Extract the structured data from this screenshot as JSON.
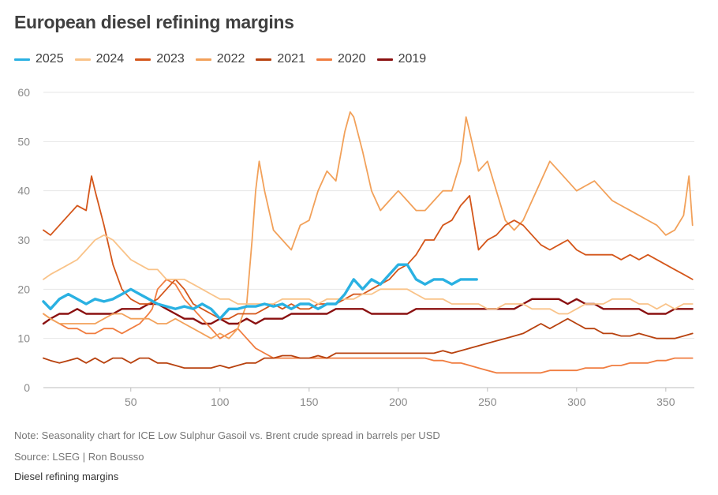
{
  "chart_data": {
    "type": "line",
    "title": "European diesel refining margins",
    "xlabel": "",
    "ylabel": "",
    "xlim": [
      1,
      366
    ],
    "ylim": [
      0,
      60
    ],
    "x_ticks": [
      50,
      100,
      150,
      200,
      250,
      300,
      350
    ],
    "y_ticks": [
      0,
      10,
      20,
      30,
      40,
      50,
      60
    ],
    "grid": "horizontal",
    "legend_position": "top-left",
    "series": [
      {
        "name": "2025",
        "color": "#2ab1e2",
        "width": 3.4,
        "x": [
          1,
          5,
          10,
          15,
          20,
          25,
          30,
          35,
          40,
          45,
          50,
          55,
          60,
          65,
          70,
          75,
          80,
          85,
          90,
          95,
          100,
          105,
          110,
          115,
          120,
          125,
          130,
          135,
          140,
          145,
          150,
          155,
          160,
          165,
          170,
          175,
          180,
          185,
          190,
          195,
          200,
          205,
          210,
          215,
          220,
          225,
          230,
          235,
          240,
          244
        ],
        "y": [
          17.5,
          16,
          18,
          19,
          18,
          17,
          18,
          17.5,
          18,
          19,
          20,
          19,
          18,
          17,
          16.5,
          16,
          16.5,
          16,
          17,
          16,
          14,
          16,
          16,
          16.5,
          16.5,
          17,
          16.5,
          17,
          16,
          17,
          17,
          16,
          17,
          17,
          19,
          22,
          20,
          22,
          21,
          23,
          25,
          25,
          22,
          21,
          22,
          22,
          21,
          22,
          22,
          22
        ]
      },
      {
        "name": "2024",
        "color": "#f9c389",
        "width": 1.8,
        "x": [
          1,
          5,
          10,
          15,
          20,
          25,
          30,
          35,
          40,
          45,
          50,
          55,
          60,
          65,
          70,
          75,
          80,
          85,
          90,
          95,
          100,
          105,
          110,
          115,
          120,
          125,
          130,
          135,
          140,
          145,
          150,
          155,
          160,
          165,
          170,
          175,
          180,
          185,
          190,
          195,
          200,
          205,
          210,
          215,
          220,
          225,
          230,
          235,
          240,
          245,
          250,
          255,
          260,
          265,
          270,
          275,
          280,
          285,
          290,
          295,
          300,
          305,
          310,
          315,
          320,
          325,
          330,
          335,
          340,
          345,
          350,
          355,
          360,
          365
        ],
        "y": [
          22,
          23,
          24,
          25,
          26,
          28,
          30,
          31,
          30,
          28,
          26,
          25,
          24,
          24,
          22,
          22,
          22,
          21,
          20,
          19,
          18,
          18,
          17,
          17,
          17,
          17,
          17,
          18,
          18,
          18,
          18,
          17,
          18,
          18,
          18,
          18,
          19,
          19,
          20,
          20,
          20,
          20,
          19,
          18,
          18,
          18,
          17,
          17,
          17,
          17,
          16,
          16,
          17,
          17,
          17,
          16,
          16,
          16,
          15,
          15,
          16,
          17,
          17,
          17,
          18,
          18,
          18,
          17,
          17,
          16,
          17,
          16,
          17,
          17
        ]
      },
      {
        "name": "2023",
        "color": "#d4561a",
        "width": 1.8,
        "x": [
          1,
          5,
          10,
          15,
          20,
          25,
          28,
          30,
          35,
          40,
          45,
          50,
          55,
          60,
          65,
          70,
          75,
          80,
          85,
          90,
          95,
          100,
          105,
          110,
          115,
          120,
          125,
          130,
          135,
          140,
          145,
          150,
          155,
          160,
          165,
          170,
          175,
          180,
          185,
          190,
          195,
          200,
          205,
          210,
          215,
          220,
          225,
          230,
          235,
          240,
          245,
          250,
          255,
          260,
          265,
          270,
          275,
          280,
          285,
          290,
          295,
          300,
          305,
          310,
          315,
          320,
          325,
          330,
          335,
          340,
          345,
          350,
          355,
          360,
          365
        ],
        "y": [
          32,
          31,
          33,
          35,
          37,
          36,
          43,
          40,
          33,
          25,
          20,
          18,
          17,
          17,
          18,
          20,
          22,
          20,
          17,
          16,
          15,
          14,
          14,
          15,
          15,
          15,
          16,
          17,
          16,
          17,
          16,
          16,
          17,
          17,
          17,
          18,
          19,
          19,
          20,
          21,
          22,
          24,
          25,
          27,
          30,
          30,
          33,
          34,
          37,
          39,
          28,
          30,
          31,
          33,
          34,
          33,
          31,
          29,
          28,
          29,
          30,
          28,
          27,
          27,
          27,
          27,
          26,
          27,
          26,
          27,
          26,
          25,
          24,
          23,
          22
        ]
      },
      {
        "name": "2022",
        "color": "#f2a15a",
        "width": 1.8,
        "x": [
          1,
          5,
          10,
          15,
          20,
          25,
          30,
          35,
          40,
          45,
          50,
          55,
          60,
          65,
          70,
          75,
          80,
          85,
          90,
          95,
          100,
          105,
          110,
          115,
          118,
          120,
          122,
          125,
          130,
          135,
          140,
          145,
          150,
          155,
          160,
          165,
          170,
          173,
          175,
          180,
          185,
          190,
          195,
          200,
          205,
          210,
          215,
          220,
          225,
          230,
          235,
          238,
          240,
          245,
          250,
          255,
          260,
          265,
          270,
          275,
          280,
          285,
          290,
          295,
          300,
          305,
          310,
          315,
          320,
          325,
          330,
          335,
          340,
          345,
          350,
          355,
          360,
          363,
          365
        ],
        "y": [
          15,
          14,
          13,
          13,
          13,
          13,
          13,
          14,
          15,
          15,
          14,
          14,
          14,
          13,
          13,
          14,
          13,
          12,
          11,
          10,
          11,
          10,
          12,
          17,
          30,
          40,
          46,
          40,
          32,
          30,
          28,
          33,
          34,
          40,
          44,
          42,
          52,
          56,
          55,
          48,
          40,
          36,
          38,
          40,
          38,
          36,
          36,
          38,
          40,
          40,
          46,
          55,
          52,
          44,
          46,
          40,
          34,
          32,
          34,
          38,
          42,
          46,
          44,
          42,
          40,
          41,
          42,
          40,
          38,
          37,
          36,
          35,
          34,
          33,
          31,
          32,
          35,
          43,
          33
        ]
      },
      {
        "name": "2021",
        "color": "#b8420f",
        "width": 1.8,
        "x": [
          1,
          5,
          10,
          15,
          20,
          25,
          30,
          35,
          40,
          45,
          50,
          55,
          60,
          65,
          70,
          75,
          80,
          85,
          90,
          95,
          100,
          105,
          110,
          115,
          120,
          125,
          130,
          135,
          140,
          145,
          150,
          155,
          160,
          165,
          170,
          175,
          180,
          185,
          190,
          195,
          200,
          205,
          210,
          215,
          220,
          225,
          230,
          235,
          240,
          245,
          250,
          255,
          260,
          265,
          270,
          275,
          280,
          285,
          290,
          295,
          300,
          305,
          310,
          315,
          320,
          325,
          330,
          335,
          340,
          345,
          350,
          355,
          360,
          365
        ],
        "y": [
          6,
          5.5,
          5,
          5.5,
          6,
          5,
          6,
          5,
          6,
          6,
          5,
          6,
          6,
          5,
          5,
          4.5,
          4,
          4,
          4,
          4,
          4.5,
          4,
          4.5,
          5,
          5,
          6,
          6,
          6.5,
          6.5,
          6,
          6,
          6.5,
          6,
          7,
          7,
          7,
          7,
          7,
          7,
          7,
          7,
          7,
          7,
          7,
          7,
          7.5,
          7,
          7.5,
          8,
          8.5,
          9,
          9.5,
          10,
          10.5,
          11,
          12,
          13,
          12,
          13,
          14,
          13,
          12,
          12,
          11,
          11,
          10.5,
          10.5,
          11,
          10.5,
          10,
          10,
          10,
          10.5,
          11
        ]
      },
      {
        "name": "2020",
        "color": "#f07d40",
        "width": 1.8,
        "x": [
          1,
          5,
          10,
          15,
          20,
          25,
          30,
          35,
          40,
          45,
          50,
          55,
          60,
          62,
          65,
          70,
          75,
          80,
          85,
          90,
          95,
          100,
          105,
          110,
          115,
          120,
          125,
          130,
          135,
          140,
          145,
          150,
          155,
          160,
          165,
          170,
          175,
          180,
          185,
          190,
          195,
          200,
          205,
          210,
          215,
          220,
          225,
          230,
          235,
          240,
          245,
          250,
          255,
          260,
          265,
          270,
          275,
          280,
          285,
          290,
          295,
          300,
          305,
          310,
          315,
          320,
          325,
          330,
          335,
          340,
          345,
          350,
          355,
          360,
          365
        ],
        "y": [
          15,
          14,
          13,
          12,
          12,
          11,
          11,
          12,
          12,
          11,
          12,
          13,
          15,
          16,
          20,
          22,
          21,
          18,
          16,
          14,
          12,
          10,
          11,
          12,
          10,
          8,
          7,
          6,
          6,
          6,
          6,
          6,
          6,
          6,
          6,
          6,
          6,
          6,
          6,
          6,
          6,
          6,
          6,
          6,
          6,
          5.5,
          5.5,
          5,
          5,
          4.5,
          4,
          3.5,
          3,
          3,
          3,
          3,
          3,
          3,
          3.5,
          3.5,
          3.5,
          3.5,
          4,
          4,
          4,
          4.5,
          4.5,
          5,
          5,
          5,
          5.5,
          5.5,
          6,
          6,
          6
        ]
      },
      {
        "name": "2019",
        "color": "#8a1010",
        "width": 2.4,
        "x": [
          1,
          5,
          10,
          15,
          20,
          25,
          30,
          35,
          40,
          45,
          50,
          55,
          60,
          65,
          70,
          75,
          80,
          85,
          90,
          95,
          100,
          105,
          110,
          115,
          120,
          125,
          130,
          135,
          140,
          145,
          150,
          155,
          160,
          165,
          170,
          175,
          180,
          185,
          190,
          195,
          200,
          205,
          210,
          215,
          220,
          225,
          230,
          235,
          240,
          245,
          250,
          255,
          260,
          265,
          270,
          275,
          280,
          285,
          290,
          295,
          300,
          305,
          310,
          315,
          320,
          325,
          330,
          335,
          340,
          345,
          350,
          355,
          360,
          365
        ],
        "y": [
          13,
          14,
          15,
          15,
          16,
          15,
          15,
          15,
          15,
          16,
          16,
          16,
          17,
          17,
          16,
          15,
          14,
          14,
          13,
          13,
          14,
          13,
          13,
          14,
          13,
          14,
          14,
          14,
          15,
          15,
          15,
          15,
          15,
          16,
          16,
          16,
          16,
          15,
          15,
          15,
          15,
          15,
          16,
          16,
          16,
          16,
          16,
          16,
          16,
          16,
          16,
          16,
          16,
          16,
          17,
          18,
          18,
          18,
          18,
          17,
          18,
          17,
          17,
          16,
          16,
          16,
          16,
          16,
          15,
          15,
          15,
          16,
          16,
          16
        ]
      }
    ]
  },
  "notes": {
    "note": "Note: Seasonality chart for ICE Low Sulphur Gasoil vs. Brent crude spread in barrels per USD",
    "source": "Source: LSEG | Ron Bousso",
    "caption": "Diesel refining margins"
  }
}
